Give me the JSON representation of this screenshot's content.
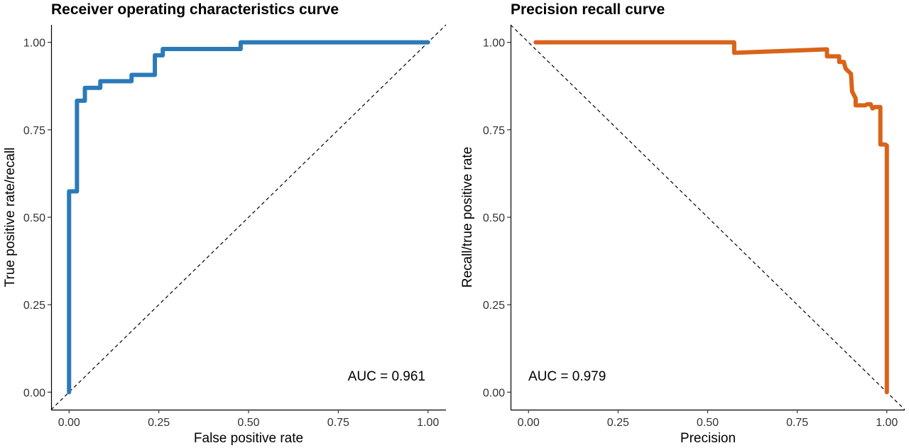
{
  "colors": {
    "roc": "#2b7ab8",
    "pr": "#d9631a"
  },
  "chart_data": [
    {
      "type": "line",
      "title": "Receiver operating characteristics curve",
      "xlabel": "False positive rate",
      "ylabel": "True positive rate/recall",
      "xlim": [
        -0.05,
        1.05
      ],
      "ylim": [
        -0.05,
        1.05
      ],
      "xticks": [
        "0.00",
        "0.25",
        "0.50",
        "0.75",
        "1.00"
      ],
      "yticks": [
        "0.00",
        "0.25",
        "0.50",
        "0.75",
        "1.00"
      ],
      "grid": false,
      "annotation": "AUC = 0.961",
      "reference_line": "diagonal from (0,0) to (1,1), dashed",
      "series": [
        {
          "x": [
            0.0,
            0.0,
            0.022,
            0.022,
            0.044,
            0.044,
            0.087,
            0.087,
            0.174,
            0.174,
            0.239,
            0.239,
            0.261,
            0.261,
            0.478,
            0.478,
            1.0
          ],
          "y": [
            0.0,
            0.574,
            0.574,
            0.833,
            0.833,
            0.87,
            0.87,
            0.889,
            0.889,
            0.907,
            0.907,
            0.963,
            0.963,
            0.981,
            0.981,
            1.0,
            1.0
          ]
        }
      ]
    },
    {
      "type": "line",
      "title": "Precision recall curve",
      "xlabel": "Precision",
      "ylabel": "Recall/true positive rate",
      "xlim": [
        -0.05,
        1.05
      ],
      "ylim": [
        -0.05,
        1.05
      ],
      "xticks": [
        "0.00",
        "0.25",
        "0.50",
        "0.75",
        "1.00"
      ],
      "yticks": [
        "0.00",
        "0.25",
        "0.50",
        "0.75",
        "1.00"
      ],
      "grid": false,
      "annotation": "AUC = 0.979",
      "reference_line": "diagonal from (0,1) to (1,0), dashed",
      "series": [
        {
          "x": [
            0.02,
            0.574,
            0.574,
            0.83,
            0.833,
            0.833,
            0.863,
            0.867,
            0.867,
            0.88,
            0.885,
            0.885,
            0.9,
            0.903,
            0.903,
            0.913,
            0.913,
            0.94,
            0.945,
            0.955,
            0.96,
            0.967,
            0.982,
            0.982,
            0.995,
            1.0,
            1.0,
            1.0
          ],
          "y": [
            1.0,
            1.0,
            0.97,
            0.98,
            0.98,
            0.96,
            0.96,
            0.96,
            0.944,
            0.944,
            0.925,
            0.925,
            0.91,
            0.86,
            0.86,
            0.84,
            0.82,
            0.82,
            0.823,
            0.823,
            0.811,
            0.815,
            0.815,
            0.708,
            0.708,
            0.705,
            0.535,
            0.0
          ]
        }
      ]
    }
  ]
}
